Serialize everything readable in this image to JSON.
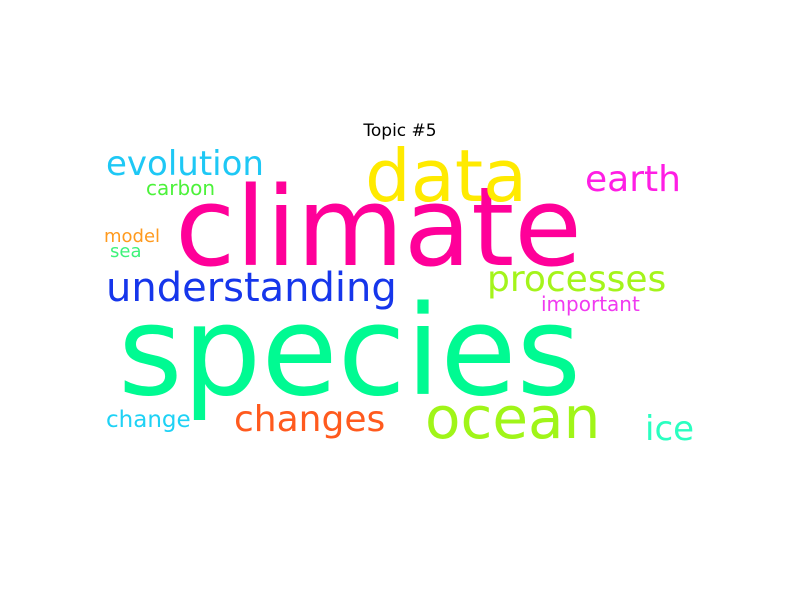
{
  "chart_data": {
    "type": "wordcloud",
    "title": "Topic #5",
    "words": [
      {
        "key": "species",
        "text": "species",
        "weight": 1.0,
        "color": "#00fa92"
      },
      {
        "key": "climate",
        "text": "climate",
        "weight": 0.9,
        "color": "#ff0099"
      },
      {
        "key": "ocean",
        "text": "ocean",
        "weight": 0.47,
        "color": "#a0f518"
      },
      {
        "key": "data",
        "text": "data",
        "weight": 0.58,
        "color": "#ffea00"
      },
      {
        "key": "understanding",
        "text": "understanding",
        "weight": 0.32,
        "color": "#1636eb"
      },
      {
        "key": "processes",
        "text": "processes",
        "weight": 0.29,
        "color": "#a4f41b"
      },
      {
        "key": "evolution",
        "text": "evolution",
        "weight": 0.28,
        "color": "#1ec8f5"
      },
      {
        "key": "earth",
        "text": "earth",
        "weight": 0.29,
        "color": "#ff1ee4"
      },
      {
        "key": "changes",
        "text": "changes",
        "weight": 0.29,
        "color": "#ff5a1e"
      },
      {
        "key": "ice",
        "text": "ice",
        "weight": 0.27,
        "color": "#2affc0"
      },
      {
        "key": "carbon",
        "text": "carbon",
        "weight": 0.16,
        "color": "#4cf23a"
      },
      {
        "key": "model",
        "text": "model",
        "weight": 0.15,
        "color": "#ff9a1e"
      },
      {
        "key": "sea",
        "text": "sea",
        "weight": 0.15,
        "color": "#3ef27a"
      },
      {
        "key": "important",
        "text": "important",
        "weight": 0.16,
        "color": "#f03af0"
      },
      {
        "key": "change",
        "text": "change",
        "weight": 0.19,
        "color": "#1ed2f5"
      }
    ]
  }
}
